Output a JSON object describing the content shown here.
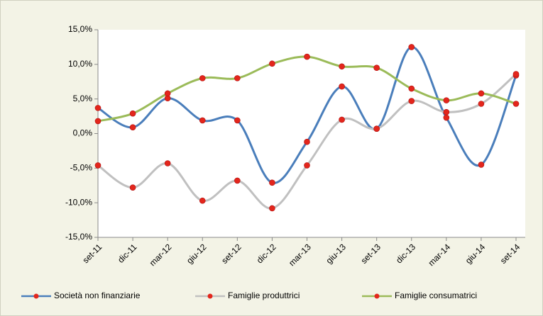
{
  "chart_data": {
    "type": "line",
    "categories": [
      "set-11",
      "dic-11",
      "mar-12",
      "giu-12",
      "set-12",
      "dic-12",
      "mar-13",
      "giu-13",
      "set-13",
      "dic-13",
      "mar-14",
      "giu-14",
      "set-14"
    ],
    "series": [
      {
        "name": "Società non finanziarie",
        "color": "#4a7ebb",
        "values": [
          3.7,
          0.9,
          5.1,
          1.9,
          1.9,
          -7.1,
          -1.2,
          6.8,
          0.7,
          12.5,
          2.3,
          -4.5,
          8.4
        ]
      },
      {
        "name": "Famiglie produttrici",
        "color": "#c0c0c0",
        "values": [
          -4.6,
          -7.8,
          -4.3,
          -9.7,
          -6.8,
          -10.8,
          -4.6,
          2.0,
          0.7,
          4.7,
          3.1,
          4.3,
          8.6
        ]
      },
      {
        "name": "Famiglie consumatrici",
        "color": "#9bbb59",
        "values": [
          1.8,
          2.9,
          5.8,
          8.0,
          8.0,
          10.1,
          11.1,
          9.7,
          9.5,
          6.5,
          4.8,
          5.8,
          4.3
        ]
      }
    ],
    "marker_color": "#e3261c",
    "ylim": [
      -15,
      15
    ],
    "yticks": [
      {
        "value": -15,
        "label": "-15,0%"
      },
      {
        "value": -10,
        "label": "-10,0%"
      },
      {
        "value": -5,
        "label": "-5,0%"
      },
      {
        "value": 0,
        "label": "0,0%"
      },
      {
        "value": 5,
        "label": "5,0%"
      },
      {
        "value": 10,
        "label": "10,0%"
      },
      {
        "value": 15,
        "label": "15,0%"
      }
    ],
    "grid": false,
    "legend": "bottom"
  }
}
